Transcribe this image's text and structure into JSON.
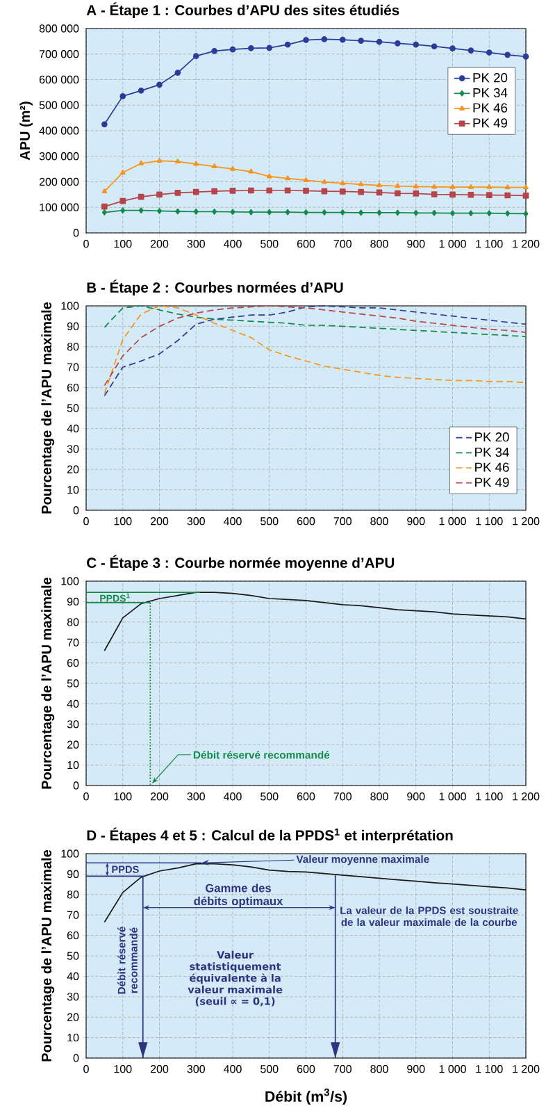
{
  "chart_data": [
    {
      "type": "line",
      "title": "A - Étape 1 : Courbes d’APU des sites étudiés",
      "ylabel": "APU (m²)",
      "x": [
        50,
        100,
        150,
        200,
        250,
        300,
        350,
        400,
        450,
        500,
        550,
        600,
        650,
        700,
        750,
        800,
        850,
        900,
        950,
        1000,
        1050,
        1100,
        1150,
        1200
      ],
      "series": [
        {
          "name": "PK 20",
          "color": "#2b3d9b",
          "marker": "circle",
          "values": [
            425000,
            535000,
            557000,
            580000,
            627000,
            692000,
            712000,
            718000,
            723000,
            724000,
            737000,
            755000,
            758000,
            756000,
            752000,
            748000,
            742000,
            737000,
            730000,
            722000,
            714000,
            706000,
            697000,
            690000
          ]
        },
        {
          "name": "PK 34",
          "color": "#138a4c",
          "marker": "diamond",
          "values": [
            80000,
            88000,
            88000,
            86000,
            84000,
            83000,
            83000,
            82000,
            81000,
            81000,
            81000,
            80000,
            80000,
            80000,
            79000,
            79000,
            79000,
            78000,
            78000,
            77000,
            77000,
            77000,
            76000,
            75000
          ]
        },
        {
          "name": "PK 46",
          "color": "#f7941d",
          "marker": "triangle",
          "values": [
            162000,
            236000,
            272000,
            282000,
            279000,
            270000,
            260000,
            250000,
            240000,
            221000,
            213000,
            206000,
            199000,
            194000,
            190000,
            186000,
            183000,
            181000,
            180000,
            179000,
            179000,
            179000,
            178000,
            178000
          ]
        },
        {
          "name": "PK 49",
          "color": "#b5454b",
          "marker": "square",
          "values": [
            103000,
            125000,
            141000,
            150000,
            157000,
            160000,
            163000,
            165000,
            166000,
            166000,
            166000,
            165000,
            163000,
            162000,
            160000,
            158000,
            155000,
            154000,
            151000,
            150000,
            149000,
            148000,
            147000,
            146000
          ]
        }
      ],
      "xlim": [
        0,
        1200
      ],
      "ylim": [
        0,
        800000
      ],
      "xticks": [
        0,
        100,
        200,
        300,
        400,
        500,
        600,
        700,
        800,
        900,
        {
          "value": 1000,
          "label": "1 000"
        },
        {
          "value": 1100,
          "label": "1 100"
        },
        {
          "value": 1200,
          "label": "1 200"
        }
      ],
      "yticks": [
        0,
        {
          "value": 100000,
          "label": "100 000"
        },
        {
          "value": 200000,
          "label": "200 000"
        },
        {
          "value": 300000,
          "label": "300 000"
        },
        {
          "value": 400000,
          "label": "400 000"
        },
        {
          "value": 500000,
          "label": "500 000"
        },
        {
          "value": 600000,
          "label": "600 000"
        },
        {
          "value": 700000,
          "label": "700 000"
        },
        {
          "value": 800000,
          "label": "800 000"
        }
      ],
      "grid": true,
      "legend": "right"
    },
    {
      "type": "line",
      "title": "B - Étape 2 : Courbes normées d’APU",
      "ylabel": "Pourcentage de l’APU maximale",
      "line_style": "dashed",
      "x": [
        50,
        100,
        150,
        200,
        250,
        300,
        350,
        400,
        450,
        500,
        550,
        600,
        650,
        700,
        750,
        800,
        850,
        900,
        950,
        1000,
        1050,
        1100,
        1150,
        1200
      ],
      "series": [
        {
          "name": "PK 20",
          "color": "#2b3d9b",
          "values": [
            56,
            70,
            73,
            76.5,
            83,
            91,
            93.5,
            94.5,
            95.5,
            95.5,
            97,
            99.5,
            100,
            99.5,
            99,
            99,
            98,
            97,
            96,
            95,
            94,
            93,
            92,
            91
          ]
        },
        {
          "name": "PK 34",
          "color": "#138a4c",
          "values": [
            89.5,
            99,
            100,
            98,
            96,
            94.5,
            93.5,
            93,
            92.5,
            92,
            91.5,
            90.5,
            90.5,
            90,
            89.5,
            89,
            88.5,
            88,
            87.5,
            87,
            86.5,
            86,
            85.5,
            85
          ]
        },
        {
          "name": "PK 46",
          "color": "#f7941d",
          "values": [
            57,
            83.5,
            96,
            100,
            99,
            95.5,
            91.5,
            88,
            84.5,
            78.5,
            75.5,
            73,
            70.5,
            69,
            67.5,
            66,
            65,
            64.5,
            64,
            63.5,
            63.5,
            63,
            63,
            62.5
          ]
        },
        {
          "name": "PK 49",
          "color": "#b5454b",
          "values": [
            61,
            75.5,
            84.5,
            90,
            94,
            96.5,
            98,
            99,
            99.5,
            100,
            99.5,
            99,
            98,
            97,
            96,
            95,
            94,
            92.5,
            91.5,
            90.5,
            89.5,
            88.5,
            88,
            87
          ]
        }
      ],
      "xlim": [
        0,
        1200
      ],
      "ylim": [
        0,
        100
      ],
      "xticks": [
        0,
        100,
        200,
        300,
        400,
        500,
        600,
        700,
        800,
        900,
        {
          "value": 1000,
          "label": "1 000"
        },
        {
          "value": 1100,
          "label": "1 100"
        },
        {
          "value": 1200,
          "label": "1 200"
        }
      ],
      "yticks": [
        0,
        10,
        20,
        30,
        40,
        50,
        60,
        70,
        80,
        90,
        100
      ],
      "grid": true,
      "legend": "bottom right"
    },
    {
      "type": "line",
      "title": "C - Étape 3 : Courbe normée moyenne d’APU",
      "ylabel": "Pourcentage de l’APU maximale",
      "series": [
        {
          "color": "#1a1a1a",
          "x": [
            50,
            100,
            150,
            200,
            250,
            300,
            350,
            400,
            450,
            500,
            550,
            600,
            650,
            700,
            750,
            800,
            850,
            900,
            950,
            1000,
            1050,
            1100,
            1150,
            1200
          ],
          "values": [
            66,
            82,
            89,
            91.5,
            93,
            94.5,
            94.5,
            94,
            93,
            91.5,
            91,
            90.5,
            89.5,
            88.5,
            88,
            87,
            86,
            85.5,
            85,
            84,
            83.5,
            83,
            82.5,
            81.5
          ]
        },
        {
          "color": "#148a4a",
          "x": [
            0,
            310
          ],
          "values": [
            94.5,
            94.5
          ]
        },
        {
          "color": "#148a4a",
          "x": [
            0,
            175
          ],
          "values": [
            89.5,
            89.5
          ]
        },
        {
          "color": "#148a4a",
          "line_style": "dotted",
          "x": [
            175,
            175
          ],
          "values": [
            89.5,
            0
          ]
        }
      ],
      "annotations": [
        "PPDS$^{1}$",
        {
          "text": "Débit réservé recommandé",
          "x": 180,
          "y": 1
        }
      ],
      "xlim": [
        0,
        1200
      ],
      "ylim": [
        0,
        100
      ],
      "xticks": [
        0,
        100,
        200,
        300,
        400,
        500,
        600,
        700,
        800,
        900,
        {
          "value": 1000,
          "label": "1 000"
        },
        {
          "value": 1100,
          "label": "1 100"
        },
        {
          "value": 1200,
          "label": "1 200"
        }
      ],
      "yticks": [
        0,
        10,
        20,
        30,
        40,
        50,
        60,
        70,
        80,
        90,
        100
      ],
      "grid": true
    },
    {
      "type": "line",
      "title": "D - Étapes 4 et 5 : Calcul de la PPDS$^{1}$ et interprétation",
      "ylabel": "Pourcentage de l’APU maximale",
      "xlabel": "Débit (m$^{3}$/s)",
      "series": [
        {
          "color": "#1a1a1a",
          "x": [
            50,
            100,
            150,
            200,
            250,
            300,
            350,
            400,
            450,
            500,
            550,
            600,
            650,
            700,
            750,
            800,
            850,
            900,
            950,
            1000,
            1050,
            1100,
            1150,
            1200
          ],
          "values": [
            66.5,
            81,
            88.5,
            91.5,
            93,
            95,
            95,
            94.5,
            93.5,
            92,
            91.3,
            91,
            90.3,
            89.5,
            88.7,
            88,
            87.2,
            86.5,
            85.8,
            85.2,
            84.5,
            83.8,
            83.2,
            82.3
          ]
        },
        {
          "color": "#2e3580",
          "x": [
            0,
            315
          ],
          "values": [
            95.5,
            95.5
          ]
        },
        {
          "color": "#2e3580",
          "x": [
            0,
            155,
            155
          ],
          "values": [
            89,
            89,
            0
          ]
        },
        {
          "color": "#2e3580",
          "x": [
            680,
            680
          ],
          "values": [
            89.5,
            0
          ]
        }
      ],
      "annotations": [
        {
          "text": "Valeur moyenne maximale",
          "x": 315,
          "y": 95.5
        },
        "La valeur de la PPDS est soustraite de la valeur maximale de la courbe",
        "Débit réservé recommandé",
        "Valeur statistiquement équivalente à la valeur maximale (seuil ∝ = 0,1)",
        "PPDS",
        "Gamme des débits optimaux"
      ],
      "xlim": [
        0,
        1200
      ],
      "ylim": [
        0,
        100
      ],
      "xticks": [
        0,
        100,
        200,
        300,
        400,
        500,
        600,
        700,
        800,
        900,
        {
          "value": 1000,
          "label": "1 000"
        },
        {
          "value": 1100,
          "label": "1 100"
        },
        {
          "value": 1200,
          "label": "1 200"
        }
      ],
      "yticks": [
        0,
        10,
        20,
        30,
        40,
        50,
        60,
        70,
        80,
        90,
        100
      ],
      "grid": true
    }
  ]
}
